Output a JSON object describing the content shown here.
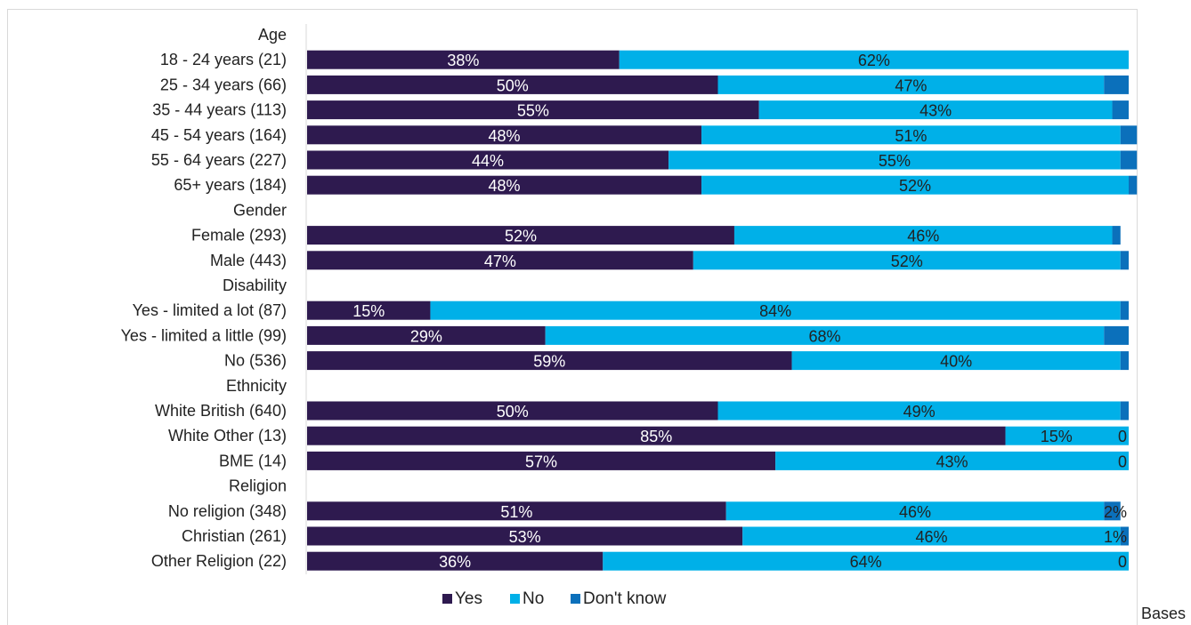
{
  "colors": {
    "yes": "#2e1a4f",
    "no": "#00b0e8",
    "dont_know": "#0b70bb",
    "frame": "#d9d9d9"
  },
  "chart_data": {
    "type": "bar",
    "orientation": "horizontal",
    "stacked": true,
    "normalized_percent": true,
    "rows": [
      {
        "kind": "header",
        "label": "Age"
      },
      {
        "kind": "bar",
        "label": "18 - 24 years (21)",
        "yes": 38,
        "no": 62,
        "dk": 0,
        "labels": [
          "38%",
          "62%",
          ""
        ]
      },
      {
        "kind": "bar",
        "label": "25 - 34 years (66)",
        "yes": 50,
        "no": 47,
        "dk": 3,
        "labels": [
          "50%",
          "47%",
          ""
        ]
      },
      {
        "kind": "bar",
        "label": "35 - 44 years (113)",
        "yes": 55,
        "no": 43,
        "dk": 2,
        "labels": [
          "55%",
          "43%",
          ""
        ]
      },
      {
        "kind": "bar",
        "label": "45 - 54 years (164)",
        "yes": 48,
        "no": 51,
        "dk": 2,
        "labels": [
          "48%",
          "51%",
          ""
        ]
      },
      {
        "kind": "bar",
        "label": "55 - 64 years (227)",
        "yes": 44,
        "no": 55,
        "dk": 2,
        "labels": [
          "44%",
          "55%",
          ""
        ]
      },
      {
        "kind": "bar",
        "label": "65+ years (184)",
        "yes": 48,
        "no": 52,
        "dk": 1,
        "labels": [
          "48%",
          "52%",
          ""
        ]
      },
      {
        "kind": "header",
        "label": "Gender"
      },
      {
        "kind": "bar",
        "label": "Female (293)",
        "yes": 52,
        "no": 46,
        "dk": 1,
        "labels": [
          "52%",
          "46%",
          ""
        ]
      },
      {
        "kind": "bar",
        "label": "Male (443)",
        "yes": 47,
        "no": 52,
        "dk": 1,
        "labels": [
          "47%",
          "52%",
          ""
        ]
      },
      {
        "kind": "header",
        "label": "Disability"
      },
      {
        "kind": "bar",
        "label": "Yes - limited a lot (87)",
        "yes": 15,
        "no": 84,
        "dk": 1,
        "labels": [
          "15%",
          "84%",
          ""
        ]
      },
      {
        "kind": "bar",
        "label": "Yes - limited a little (99)",
        "yes": 29,
        "no": 68,
        "dk": 3,
        "labels": [
          "29%",
          "68%",
          ""
        ]
      },
      {
        "kind": "bar",
        "label": "No (536)",
        "yes": 59,
        "no": 40,
        "dk": 1,
        "labels": [
          "59%",
          "40%",
          ""
        ]
      },
      {
        "kind": "header",
        "label": "Ethnicity"
      },
      {
        "kind": "bar",
        "label": "White British (640)",
        "yes": 50,
        "no": 49,
        "dk": 1,
        "labels": [
          "50%",
          "49%",
          ""
        ]
      },
      {
        "kind": "bar",
        "label": "White Other (13)",
        "yes": 85,
        "no": 15,
        "dk": 0,
        "labels": [
          "85%",
          "15%",
          "0"
        ]
      },
      {
        "kind": "bar",
        "label": "BME (14)",
        "yes": 57,
        "no": 43,
        "dk": 0,
        "labels": [
          "57%",
          "43%",
          "0"
        ]
      },
      {
        "kind": "header",
        "label": "Religion"
      },
      {
        "kind": "bar",
        "label": "No religion (348)",
        "yes": 51,
        "no": 46,
        "dk": 2,
        "labels": [
          "51%",
          "46%",
          "2%"
        ]
      },
      {
        "kind": "bar",
        "label": "Christian (261)",
        "yes": 53,
        "no": 46,
        "dk": 1,
        "labels": [
          "53%",
          "46%",
          "1%"
        ]
      },
      {
        "kind": "bar",
        "label": "Other Religion (22)",
        "yes": 36,
        "no": 64,
        "dk": 0,
        "labels": [
          "36%",
          "64%",
          "0"
        ]
      }
    ],
    "series": [
      {
        "name": "Yes",
        "key": "yes"
      },
      {
        "name": "No",
        "key": "no"
      },
      {
        "name": "Don't know",
        "key": "dk"
      }
    ],
    "legend_position": "bottom",
    "xlim": [
      0,
      100
    ]
  },
  "bases_note": "Bases"
}
